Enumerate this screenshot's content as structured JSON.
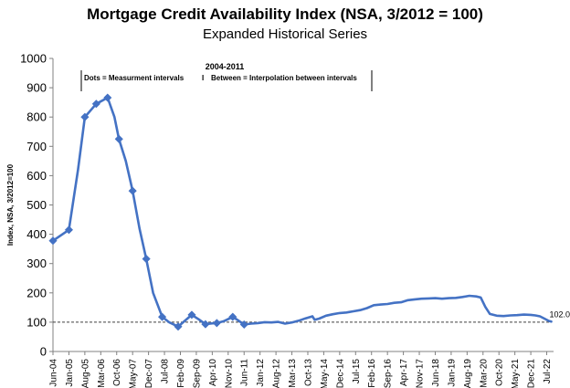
{
  "chart_data": {
    "type": "line",
    "title": "Mortgage Credit Availability Index (NSA, 3/2012 = 100)",
    "subtitle": "Expanded Historical Series",
    "ylabel": "Index, NSA, 3/2012=100",
    "xlabel": "",
    "ylim": [
      0,
      1000
    ],
    "yticks": [
      0,
      100,
      200,
      300,
      400,
      500,
      600,
      700,
      800,
      900,
      1000
    ],
    "grid": false,
    "xtick_labels": [
      "Jun-04",
      "Jan-05",
      "Aug-05",
      "Mar-06",
      "Oct-06",
      "May-07",
      "Dec-07",
      "Jul-08",
      "Feb-09",
      "Sep-09",
      "Apr-10",
      "Nov-10",
      "Jun-11",
      "Jan-12",
      "Aug-12",
      "Mar-13",
      "Oct-13",
      "May-14",
      "Dec-14",
      "Jul-15",
      "Feb-16",
      "Sep-16",
      "Apr-17",
      "Nov-17",
      "Jun-18",
      "Jan-19",
      "Aug-19",
      "Mar-20",
      "Oct-20",
      "May-21",
      "Dec-21",
      "Jul-22"
    ],
    "reference_line": {
      "value": 100,
      "style": "dashed"
    },
    "annotation": {
      "heading": "2004-2011",
      "dots_text": "Dots = Measurment intervals",
      "separator": "I",
      "between_text": "Between = Interpolation between intervals"
    },
    "end_label": "102.0",
    "series": [
      {
        "color": "#4472C4",
        "marker_dates": [
          "2004-06",
          "2005-01",
          "2005-08",
          "2006-01",
          "2006-06",
          "2006-11",
          "2007-05",
          "2007-11",
          "2008-06",
          "2009-01",
          "2009-07",
          "2010-01",
          "2010-06",
          "2011-01",
          "2011-06"
        ],
        "points": [
          [
            "2004-06",
            378
          ],
          [
            "2005-01",
            415
          ],
          [
            "2005-05",
            620
          ],
          [
            "2005-08",
            800
          ],
          [
            "2006-01",
            845
          ],
          [
            "2006-06",
            866
          ],
          [
            "2006-09",
            800
          ],
          [
            "2006-11",
            725
          ],
          [
            "2007-02",
            650
          ],
          [
            "2007-05",
            548
          ],
          [
            "2007-08",
            420
          ],
          [
            "2007-11",
            316
          ],
          [
            "2008-02",
            200
          ],
          [
            "2008-06",
            118
          ],
          [
            "2008-09",
            100
          ],
          [
            "2009-01",
            85
          ],
          [
            "2009-04",
            105
          ],
          [
            "2009-07",
            125
          ],
          [
            "2009-10",
            110
          ],
          [
            "2010-01",
            93
          ],
          [
            "2010-04",
            96
          ],
          [
            "2010-06",
            97
          ],
          [
            "2010-09",
            103
          ],
          [
            "2011-01",
            118
          ],
          [
            "2011-03",
            108
          ],
          [
            "2011-06",
            92
          ],
          [
            "2011-09",
            95
          ],
          [
            "2011-12",
            97
          ],
          [
            "2012-03",
            100
          ],
          [
            "2012-06",
            99
          ],
          [
            "2012-09",
            101
          ],
          [
            "2012-12",
            95
          ],
          [
            "2013-03",
            99
          ],
          [
            "2013-06",
            105
          ],
          [
            "2013-09",
            113
          ],
          [
            "2013-12",
            120
          ],
          [
            "2014-01",
            108
          ],
          [
            "2014-03",
            112
          ],
          [
            "2014-06",
            122
          ],
          [
            "2014-09",
            127
          ],
          [
            "2014-12",
            131
          ],
          [
            "2015-03",
            133
          ],
          [
            "2015-06",
            137
          ],
          [
            "2015-09",
            141
          ],
          [
            "2015-12",
            148
          ],
          [
            "2016-03",
            158
          ],
          [
            "2016-06",
            160
          ],
          [
            "2016-09",
            162
          ],
          [
            "2016-12",
            166
          ],
          [
            "2017-03",
            168
          ],
          [
            "2017-06",
            175
          ],
          [
            "2017-09",
            178
          ],
          [
            "2017-12",
            180
          ],
          [
            "2018-03",
            181
          ],
          [
            "2018-06",
            182
          ],
          [
            "2018-09",
            180
          ],
          [
            "2018-12",
            182
          ],
          [
            "2019-03",
            183
          ],
          [
            "2019-06",
            186
          ],
          [
            "2019-09",
            190
          ],
          [
            "2019-12",
            188
          ],
          [
            "2020-02",
            184
          ],
          [
            "2020-04",
            152
          ],
          [
            "2020-06",
            128
          ],
          [
            "2020-09",
            122
          ],
          [
            "2020-12",
            121
          ],
          [
            "2021-03",
            123
          ],
          [
            "2021-06",
            124
          ],
          [
            "2021-09",
            126
          ],
          [
            "2021-12",
            125
          ],
          [
            "2022-02",
            123
          ],
          [
            "2022-04",
            120
          ],
          [
            "2022-06",
            112
          ],
          [
            "2022-08",
            104
          ],
          [
            "2022-09",
            102
          ]
        ]
      }
    ]
  }
}
